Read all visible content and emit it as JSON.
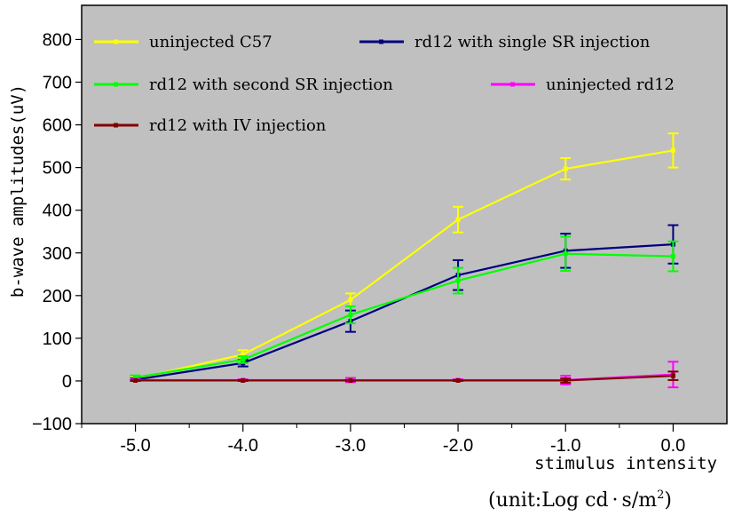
{
  "chart_data": {
    "type": "line",
    "xlabel": "stimulus intensity",
    "xunit": {
      "prefix": "(unit:Log cd",
      "dot": "·",
      "suffix": "s/m",
      "sup": "2",
      "close": ")"
    },
    "ylabel": "b-wave amplitudes(uV)",
    "x": [
      -5.0,
      -4.0,
      -3.0,
      -2.0,
      -1.0,
      0.0
    ],
    "x_tick_labels": [
      "-5.0",
      "-4.0",
      "-3.0",
      "-2.0",
      "-1.0",
      "0.0"
    ],
    "y_ticks": [
      -100,
      0,
      100,
      200,
      300,
      400,
      500,
      600,
      700,
      800
    ],
    "xlim": [
      -5.5,
      0.5
    ],
    "ylim": [
      -100,
      880
    ],
    "plot_background": "#c0c0c0",
    "grid": false,
    "legend_placement": "top",
    "series": [
      {
        "name": "uninjected C57",
        "color": "#ffff00",
        "values": [
          5,
          62,
          190,
          378,
          497,
          540
        ],
        "errors": [
          3,
          10,
          15,
          30,
          25,
          40
        ]
      },
      {
        "name": "rd12 with single SR injection",
        "color": "#000080",
        "values": [
          3,
          42,
          140,
          248,
          305,
          320
        ],
        "errors": [
          3,
          8,
          25,
          35,
          40,
          45
        ]
      },
      {
        "name": "rd12 with second SR injection",
        "color": "#00ff00",
        "values": [
          8,
          50,
          155,
          235,
          298,
          292
        ],
        "errors": [
          5,
          8,
          20,
          30,
          40,
          35
        ]
      },
      {
        "name": "uninjected rd12",
        "color": "#ff00ff",
        "values": [
          2,
          2,
          2,
          2,
          2,
          15
        ],
        "errors": [
          2,
          2,
          5,
          2,
          10,
          30
        ]
      },
      {
        "name": "rd12 with IV injection",
        "color": "#800000",
        "values": [
          1,
          1,
          1,
          1,
          1,
          12
        ],
        "errors": [
          1,
          1,
          1,
          1,
          5,
          10
        ]
      }
    ]
  }
}
